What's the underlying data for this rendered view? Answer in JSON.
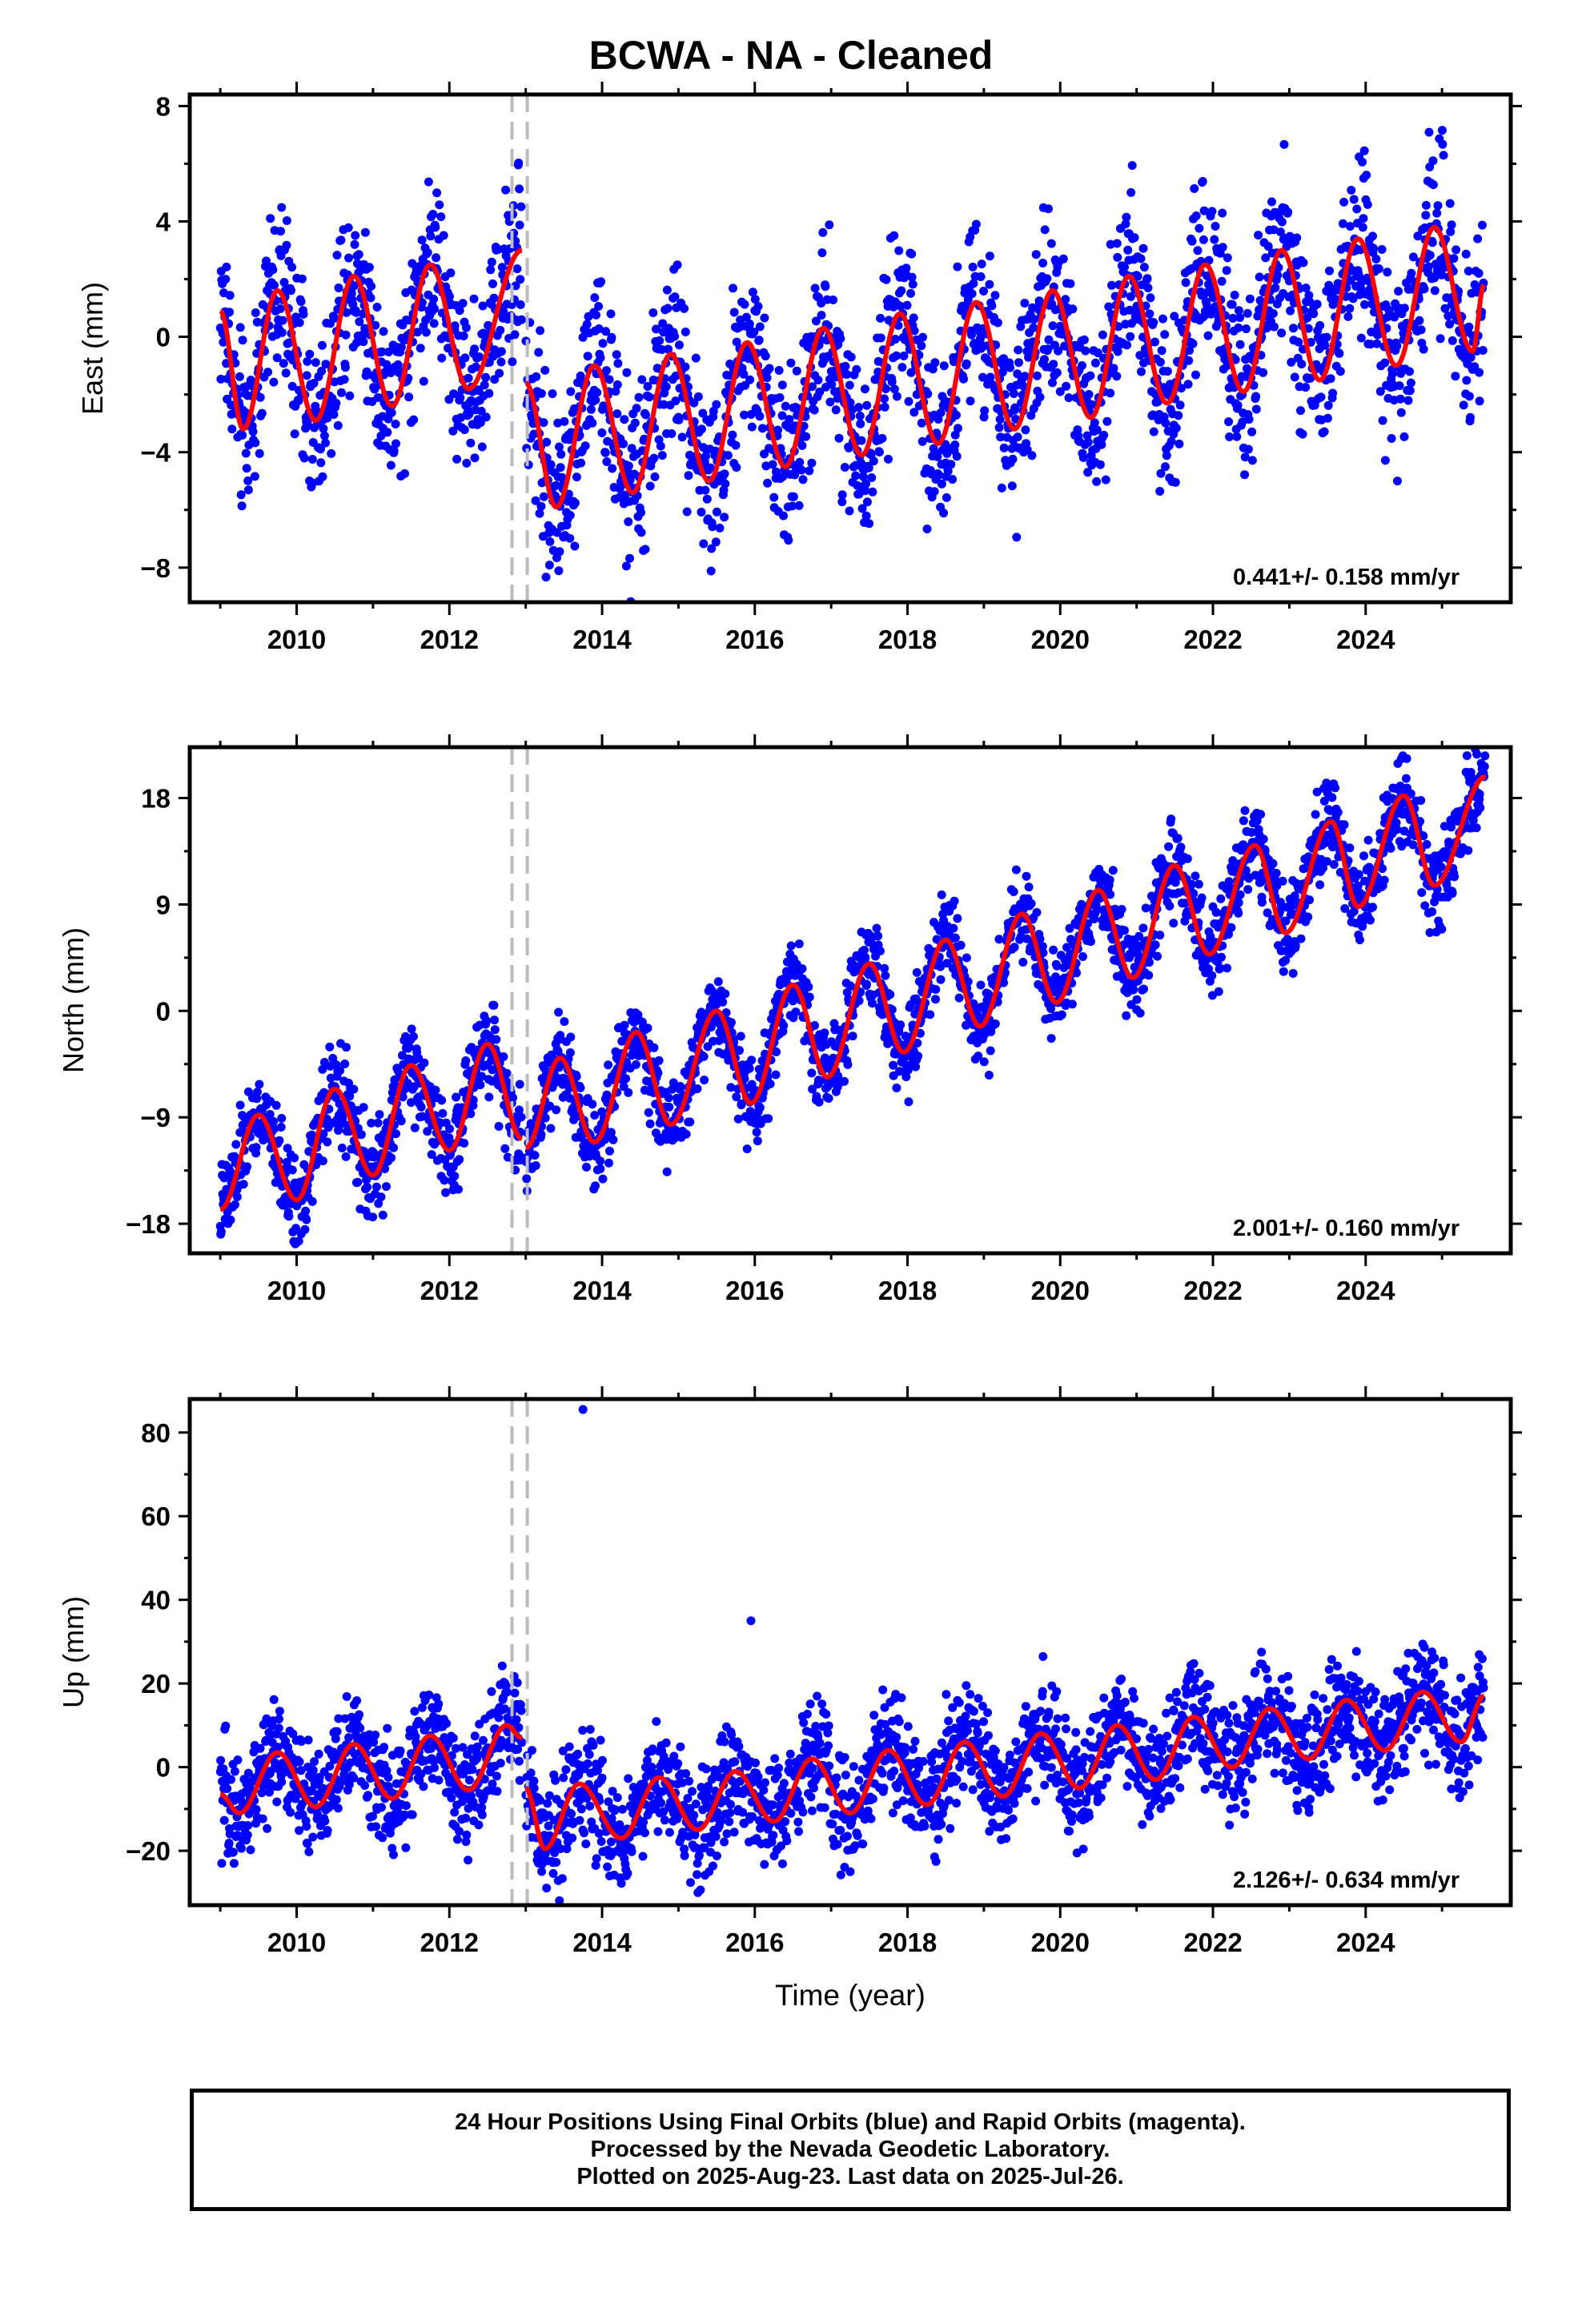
{
  "title": "BCWA  - NA - Cleaned",
  "colors": {
    "points": "#0000ff",
    "model": "#ff0000",
    "offset": "#bbbbbb",
    "frame": "#000000"
  },
  "xlabel": "Time (year)",
  "footer": {
    "line1": "24 Hour Positions Using Final Orbits (blue) and Rapid Orbits (magenta).",
    "line2": "Processed by the Nevada Geodetic Laboratory.",
    "line3": "Plotted on 2025-Aug-23. Last data on 2025-Jul-26."
  },
  "chart_data": [
    {
      "type": "scatter",
      "ylabel": "East (mm)",
      "xlim": [
        2008.6,
        2025.9
      ],
      "ylim": [
        -9.2,
        8.4
      ],
      "xticks": [
        2010,
        2012,
        2014,
        2016,
        2018,
        2020,
        2022,
        2024
      ],
      "yticks": [
        -8,
        -4,
        0,
        4,
        8
      ],
      "yticklabels": [
        "−8",
        "−4",
        "0",
        "4",
        "8"
      ],
      "rate_label": "0.441+/- 0.158 mm/yr",
      "offsets": [
        2012.82,
        2013.02
      ],
      "series": [
        {
          "kind": "points",
          "x_range": [
            2009.0,
            2025.57
          ],
          "spread": 1.5,
          "model_segments": [
            {
              "x": [
                2009.0,
                2009.3,
                2009.75,
                2010.25,
                2010.75,
                2011.25,
                2011.75,
                2012.25,
                2012.95
              ],
              "y": [
                0.9,
                -3.2,
                1.6,
                -2.9,
                2.1,
                -2.4,
                2.5,
                -1.8,
                3.0
              ]
            },
            {
              "x": [
                2013.0,
                2013.4,
                2013.9,
                2014.4,
                2014.9,
                2015.4,
                2015.9,
                2016.4,
                2016.9,
                2017.4,
                2017.9,
                2018.4,
                2018.9,
                2019.4,
                2019.9,
                2020.4,
                2020.9,
                2021.4,
                2021.9,
                2022.4,
                2022.9,
                2023.4,
                2023.9,
                2024.4,
                2024.9,
                2025.4,
                2025.55
              ],
              "y": [
                -1.6,
                -5.9,
                -1.0,
                -5.4,
                -0.6,
                -5.0,
                -0.2,
                -4.5,
                0.3,
                -4.1,
                0.8,
                -3.7,
                1.2,
                -3.2,
                1.6,
                -2.8,
                2.1,
                -2.3,
                2.5,
                -1.9,
                3.0,
                -1.5,
                3.4,
                -1.0,
                3.8,
                -0.5,
                1.8
              ]
            }
          ]
        }
      ]
    },
    {
      "type": "scatter",
      "ylabel": "North (mm)",
      "xlim": [
        2008.6,
        2025.9
      ],
      "ylim": [
        -20.5,
        22.3
      ],
      "xticks": [
        2010,
        2012,
        2014,
        2016,
        2018,
        2020,
        2022,
        2024
      ],
      "yticks": [
        -18,
        -9,
        0,
        9,
        18
      ],
      "yticklabels": [
        "−18",
        "−9",
        "0",
        "9",
        "18"
      ],
      "rate_label": "2.001+/- 0.160 mm/yr",
      "offsets": [
        2012.82,
        2013.02
      ],
      "series": [
        {
          "kind": "points",
          "x_range": [
            2009.0,
            2025.57
          ],
          "spread": 1.8,
          "model_segments": [
            {
              "x": [
                2009.0,
                2009.5,
                2010.0,
                2010.5,
                2011.0,
                2011.5,
                2012.0,
                2012.5,
                2012.95
              ],
              "y": [
                -16.8,
                -8.8,
                -16.0,
                -6.6,
                -13.9,
                -4.6,
                -11.8,
                -2.8,
                -10.8
              ]
            },
            {
              "x": [
                2013.0,
                2013.45,
                2013.9,
                2014.45,
                2014.9,
                2015.5,
                2015.95,
                2016.5,
                2016.95,
                2017.5,
                2017.95,
                2018.5,
                2018.95,
                2019.5,
                2019.95,
                2020.5,
                2020.95,
                2021.5,
                2021.95,
                2022.55,
                2022.95,
                2023.55,
                2023.9,
                2024.5,
                2024.9,
                2025.57
              ],
              "y": [
                -11.6,
                -4.0,
                -11.1,
                -1.8,
                -9.6,
                0.0,
                -7.8,
                2.2,
                -5.6,
                4.0,
                -3.5,
                6.0,
                -1.3,
                8.2,
                0.7,
                10.2,
                2.8,
                12.3,
                4.8,
                14.0,
                6.6,
                16.0,
                8.8,
                18.2,
                10.6,
                19.8
              ]
            }
          ]
        }
      ]
    },
    {
      "type": "scatter",
      "ylabel": "Up (mm)",
      "xlim": [
        2008.6,
        2025.9
      ],
      "ylim": [
        -33,
        88
      ],
      "xticks": [
        2010,
        2012,
        2014,
        2016,
        2018,
        2020,
        2022,
        2024
      ],
      "yticks": [
        -20,
        0,
        20,
        40,
        60,
        80
      ],
      "yticklabels": [
        "−20",
        "0",
        "20",
        "40",
        "60",
        "80"
      ],
      "rate_label": "2.126+/- 0.634 mm/yr",
      "offsets": [
        2012.82,
        2013.02
      ],
      "outliers": [
        {
          "x": 2013.75,
          "y": 85.5
        },
        {
          "x": 2015.95,
          "y": 35
        }
      ],
      "series": [
        {
          "kind": "points",
          "x_range": [
            2009.0,
            2025.57
          ],
          "spread": 6.5,
          "model_segments": [
            {
              "x": [
                2009.0,
                2009.25,
                2009.75,
                2010.25,
                2010.75,
                2011.25,
                2011.75,
                2012.25,
                2012.75,
                2012.95
              ],
              "y": [
                -6.5,
                -11.0,
                3.5,
                -9.5,
                5.5,
                -7.5,
                7.5,
                -5.5,
                10.0,
                7.0
              ]
            },
            {
              "x": [
                2013.0,
                2013.25,
                2013.7,
                2014.25,
                2014.75,
                2015.25,
                2015.75,
                2016.25,
                2016.75,
                2017.25,
                2017.75,
                2018.25,
                2018.75,
                2019.25,
                2019.75,
                2020.25,
                2020.75,
                2021.25,
                2021.75,
                2022.25,
                2022.75,
                2023.25,
                2023.75,
                2024.25,
                2024.75,
                2025.25,
                2025.55
              ],
              "y": [
                -5.0,
                -19.5,
                -4.0,
                -17.0,
                -2.5,
                -15.0,
                -1.0,
                -13.0,
                2.0,
                -11.0,
                4.0,
                -9.0,
                6.0,
                -7.0,
                8.0,
                -5.0,
                10.0,
                -3.0,
                12.0,
                0.0,
                14.0,
                2.0,
                16.0,
                4.0,
                18.0,
                6.0,
                17.0
              ]
            }
          ]
        }
      ]
    }
  ]
}
